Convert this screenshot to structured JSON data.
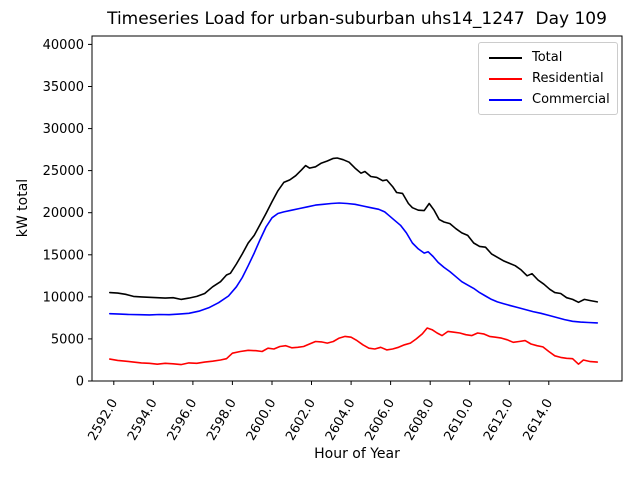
{
  "chart_data": {
    "type": "line",
    "title": "Timeseries Load for urban-suburban uhs14_1247  Day 109",
    "xlabel": "Hour of Year",
    "ylabel": "kW total",
    "xlim": [
      2590.9,
      2617.7
    ],
    "ylim": [
      0,
      41000
    ],
    "grid": false,
    "legend_position": "upper right",
    "xticks": {
      "values": [
        2592,
        2594,
        2596,
        2598,
        2600,
        2602,
        2604,
        2606,
        2608,
        2610,
        2612,
        2614
      ],
      "labels": [
        "2592.0",
        "2594.0",
        "2596.0",
        "2598.0",
        "2600.0",
        "2602.0",
        "2604.0",
        "2606.0",
        "2608.0",
        "2610.0",
        "2612.0",
        "2614.0"
      ],
      "rotation": -60
    },
    "yticks": {
      "values": [
        0,
        5000,
        10000,
        15000,
        20000,
        25000,
        30000,
        35000,
        40000
      ],
      "labels": [
        "0",
        "5000",
        "10000",
        "15000",
        "20000",
        "25000",
        "30000",
        "35000",
        "40000"
      ]
    },
    "series": [
      {
        "name": "Total",
        "color": "#000000",
        "linewidth": 1.6,
        "points": [
          [
            2591.8,
            10500
          ],
          [
            2592.2,
            10450
          ],
          [
            2592.6,
            10300
          ],
          [
            2593.0,
            10050
          ],
          [
            2593.4,
            10000
          ],
          [
            2593.8,
            9950
          ],
          [
            2594.2,
            9900
          ],
          [
            2594.6,
            9850
          ],
          [
            2595.0,
            9900
          ],
          [
            2595.4,
            9700
          ],
          [
            2595.8,
            9850
          ],
          [
            2596.2,
            10050
          ],
          [
            2596.6,
            10400
          ],
          [
            2597.0,
            11200
          ],
          [
            2597.4,
            11800
          ],
          [
            2597.7,
            12600
          ],
          [
            2597.9,
            12800
          ],
          [
            2598.2,
            13900
          ],
          [
            2598.5,
            15100
          ],
          [
            2598.8,
            16400
          ],
          [
            2599.1,
            17300
          ],
          [
            2599.4,
            18600
          ],
          [
            2599.7,
            19900
          ],
          [
            2600.0,
            21300
          ],
          [
            2600.3,
            22600
          ],
          [
            2600.6,
            23600
          ],
          [
            2600.9,
            23900
          ],
          [
            2601.2,
            24400
          ],
          [
            2601.5,
            25100
          ],
          [
            2601.7,
            25600
          ],
          [
            2601.9,
            25300
          ],
          [
            2602.2,
            25450
          ],
          [
            2602.5,
            25900
          ],
          [
            2602.8,
            26150
          ],
          [
            2603.1,
            26450
          ],
          [
            2603.3,
            26500
          ],
          [
            2603.6,
            26300
          ],
          [
            2603.9,
            26000
          ],
          [
            2604.2,
            25300
          ],
          [
            2604.5,
            24700
          ],
          [
            2604.7,
            24900
          ],
          [
            2605.0,
            24300
          ],
          [
            2605.3,
            24200
          ],
          [
            2605.6,
            23800
          ],
          [
            2605.8,
            23900
          ],
          [
            2606.1,
            23100
          ],
          [
            2606.3,
            22400
          ],
          [
            2606.6,
            22300
          ],
          [
            2606.9,
            21100
          ],
          [
            2607.1,
            20600
          ],
          [
            2607.4,
            20300
          ],
          [
            2607.7,
            20250
          ],
          [
            2607.95,
            21100
          ],
          [
            2608.2,
            20300
          ],
          [
            2608.45,
            19200
          ],
          [
            2608.7,
            18900
          ],
          [
            2609.0,
            18700
          ],
          [
            2609.3,
            18100
          ],
          [
            2609.6,
            17600
          ],
          [
            2609.9,
            17300
          ],
          [
            2610.2,
            16400
          ],
          [
            2610.5,
            16000
          ],
          [
            2610.8,
            15900
          ],
          [
            2611.1,
            15100
          ],
          [
            2611.4,
            14700
          ],
          [
            2611.7,
            14300
          ],
          [
            2612.0,
            14000
          ],
          [
            2612.3,
            13700
          ],
          [
            2612.6,
            13200
          ],
          [
            2612.9,
            12500
          ],
          [
            2613.15,
            12750
          ],
          [
            2613.45,
            12000
          ],
          [
            2613.75,
            11500
          ],
          [
            2614.05,
            10900
          ],
          [
            2614.3,
            10500
          ],
          [
            2614.6,
            10400
          ],
          [
            2614.9,
            9900
          ],
          [
            2615.2,
            9700
          ],
          [
            2615.5,
            9350
          ],
          [
            2615.8,
            9700
          ],
          [
            2616.1,
            9550
          ],
          [
            2616.45,
            9400
          ]
        ]
      },
      {
        "name": "Residential",
        "color": "#ff0000",
        "linewidth": 1.6,
        "points": [
          [
            2591.8,
            2600
          ],
          [
            2592.2,
            2450
          ],
          [
            2592.6,
            2350
          ],
          [
            2593.0,
            2250
          ],
          [
            2593.4,
            2150
          ],
          [
            2593.8,
            2100
          ],
          [
            2594.2,
            2000
          ],
          [
            2594.6,
            2100
          ],
          [
            2595.0,
            2050
          ],
          [
            2595.4,
            1950
          ],
          [
            2595.8,
            2150
          ],
          [
            2596.2,
            2100
          ],
          [
            2596.6,
            2250
          ],
          [
            2597.0,
            2350
          ],
          [
            2597.4,
            2500
          ],
          [
            2597.7,
            2650
          ],
          [
            2598.0,
            3300
          ],
          [
            2598.4,
            3500
          ],
          [
            2598.8,
            3650
          ],
          [
            2599.2,
            3600
          ],
          [
            2599.5,
            3500
          ],
          [
            2599.8,
            3900
          ],
          [
            2600.1,
            3800
          ],
          [
            2600.4,
            4100
          ],
          [
            2600.7,
            4200
          ],
          [
            2601.0,
            3950
          ],
          [
            2601.3,
            4000
          ],
          [
            2601.6,
            4100
          ],
          [
            2601.9,
            4400
          ],
          [
            2602.2,
            4700
          ],
          [
            2602.5,
            4650
          ],
          [
            2602.8,
            4500
          ],
          [
            2603.1,
            4700
          ],
          [
            2603.4,
            5100
          ],
          [
            2603.7,
            5300
          ],
          [
            2604.0,
            5200
          ],
          [
            2604.3,
            4800
          ],
          [
            2604.6,
            4300
          ],
          [
            2604.9,
            3900
          ],
          [
            2605.2,
            3800
          ],
          [
            2605.5,
            4000
          ],
          [
            2605.8,
            3700
          ],
          [
            2606.1,
            3800
          ],
          [
            2606.4,
            4000
          ],
          [
            2606.7,
            4300
          ],
          [
            2607.0,
            4500
          ],
          [
            2607.3,
            5000
          ],
          [
            2607.6,
            5600
          ],
          [
            2607.85,
            6300
          ],
          [
            2608.1,
            6100
          ],
          [
            2608.35,
            5700
          ],
          [
            2608.6,
            5400
          ],
          [
            2608.9,
            5900
          ],
          [
            2609.2,
            5800
          ],
          [
            2609.5,
            5700
          ],
          [
            2609.8,
            5500
          ],
          [
            2610.1,
            5400
          ],
          [
            2610.4,
            5700
          ],
          [
            2610.7,
            5600
          ],
          [
            2611.0,
            5300
          ],
          [
            2611.3,
            5200
          ],
          [
            2611.6,
            5100
          ],
          [
            2611.9,
            4900
          ],
          [
            2612.2,
            4600
          ],
          [
            2612.5,
            4700
          ],
          [
            2612.8,
            4800
          ],
          [
            2613.1,
            4400
          ],
          [
            2613.4,
            4200
          ],
          [
            2613.7,
            4050
          ],
          [
            2614.0,
            3500
          ],
          [
            2614.3,
            3000
          ],
          [
            2614.6,
            2800
          ],
          [
            2614.9,
            2700
          ],
          [
            2615.2,
            2650
          ],
          [
            2615.5,
            2000
          ],
          [
            2615.75,
            2500
          ],
          [
            2616.1,
            2300
          ],
          [
            2616.45,
            2250
          ]
        ]
      },
      {
        "name": "Commercial",
        "color": "#0000ff",
        "linewidth": 1.6,
        "points": [
          [
            2591.8,
            8000
          ],
          [
            2592.3,
            7950
          ],
          [
            2592.8,
            7900
          ],
          [
            2593.3,
            7880
          ],
          [
            2593.8,
            7850
          ],
          [
            2594.3,
            7900
          ],
          [
            2594.8,
            7880
          ],
          [
            2595.3,
            7950
          ],
          [
            2595.8,
            8050
          ],
          [
            2596.3,
            8300
          ],
          [
            2596.8,
            8700
          ],
          [
            2597.3,
            9300
          ],
          [
            2597.8,
            10100
          ],
          [
            2598.2,
            11200
          ],
          [
            2598.5,
            12300
          ],
          [
            2598.8,
            13700
          ],
          [
            2599.1,
            15200
          ],
          [
            2599.4,
            16800
          ],
          [
            2599.7,
            18300
          ],
          [
            2600.0,
            19400
          ],
          [
            2600.3,
            19900
          ],
          [
            2600.6,
            20100
          ],
          [
            2601.0,
            20300
          ],
          [
            2601.4,
            20500
          ],
          [
            2601.8,
            20700
          ],
          [
            2602.2,
            20900
          ],
          [
            2602.6,
            21000
          ],
          [
            2603.0,
            21100
          ],
          [
            2603.4,
            21150
          ],
          [
            2603.8,
            21100
          ],
          [
            2604.2,
            21000
          ],
          [
            2604.6,
            20800
          ],
          [
            2605.0,
            20600
          ],
          [
            2605.4,
            20400
          ],
          [
            2605.7,
            20100
          ],
          [
            2605.9,
            19700
          ],
          [
            2606.2,
            19100
          ],
          [
            2606.5,
            18500
          ],
          [
            2606.8,
            17600
          ],
          [
            2607.1,
            16400
          ],
          [
            2607.4,
            15700
          ],
          [
            2607.7,
            15200
          ],
          [
            2607.9,
            15350
          ],
          [
            2608.15,
            14800
          ],
          [
            2608.4,
            14100
          ],
          [
            2608.7,
            13500
          ],
          [
            2609.0,
            13000
          ],
          [
            2609.3,
            12400
          ],
          [
            2609.6,
            11800
          ],
          [
            2609.9,
            11400
          ],
          [
            2610.2,
            11000
          ],
          [
            2610.5,
            10500
          ],
          [
            2610.8,
            10100
          ],
          [
            2611.1,
            9700
          ],
          [
            2611.4,
            9400
          ],
          [
            2611.7,
            9200
          ],
          [
            2612.0,
            9000
          ],
          [
            2612.4,
            8750
          ],
          [
            2612.8,
            8500
          ],
          [
            2613.2,
            8250
          ],
          [
            2613.6,
            8050
          ],
          [
            2614.0,
            7800
          ],
          [
            2614.4,
            7550
          ],
          [
            2614.8,
            7300
          ],
          [
            2615.2,
            7100
          ],
          [
            2615.6,
            7000
          ],
          [
            2616.0,
            6950
          ],
          [
            2616.45,
            6900
          ]
        ]
      }
    ]
  },
  "legend": {
    "entries": [
      {
        "label": "Total",
        "color": "#000000"
      },
      {
        "label": "Residential",
        "color": "#ff0000"
      },
      {
        "label": "Commercial",
        "color": "#0000ff"
      }
    ]
  }
}
